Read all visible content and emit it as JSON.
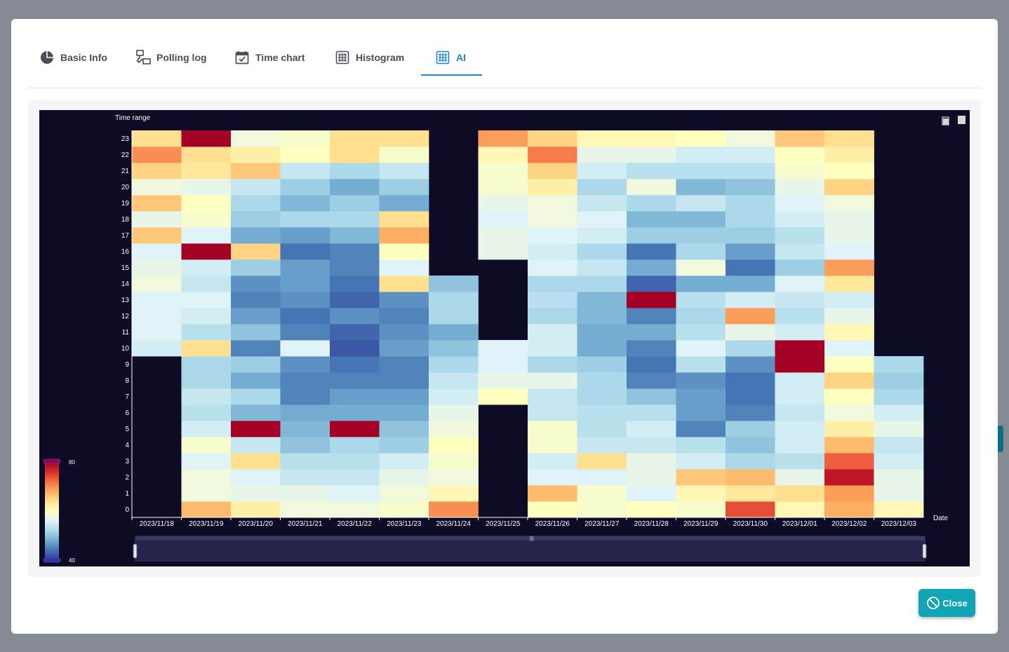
{
  "tabs": [
    {
      "label": "Basic Info",
      "icon": "pie-chart-icon",
      "active": false
    },
    {
      "label": "Polling log",
      "icon": "network-check-icon",
      "active": false
    },
    {
      "label": "Time chart",
      "icon": "calendar-check-icon",
      "active": false
    },
    {
      "label": "Histogram",
      "icon": "grid-icon",
      "active": false
    },
    {
      "label": "AI",
      "icon": "grid-icon",
      "active": true
    }
  ],
  "close_button": {
    "label": "Close",
    "icon": "ban-icon"
  },
  "colors": {
    "accent": "#1f86c9",
    "close": "#11a4b4",
    "chart_bg": "#0e0b26"
  },
  "chart_data": {
    "type": "heatmap",
    "ylabel": "Time range",
    "xlabel": "Date",
    "x": [
      "2023/11/18",
      "2023/11/19",
      "2023/11/20",
      "2023/11/21",
      "2023/11/22",
      "2023/11/23",
      "2023/11/24",
      "2023/11/25",
      "2023/11/26",
      "2023/11/27",
      "2023/11/28",
      "2023/11/29",
      "2023/11/30",
      "2023/12/01",
      "2023/12/02",
      "2023/12/03"
    ],
    "y": [
      "0",
      "1",
      "2",
      "3",
      "4",
      "5",
      "6",
      "7",
      "8",
      "9",
      "10",
      "11",
      "12",
      "13",
      "14",
      "15",
      "16",
      "17",
      "18",
      "19",
      "20",
      "21",
      "22",
      "23"
    ],
    "visual_map": {
      "min": 40,
      "max": 80,
      "min_label": "40",
      "max_label": "80"
    },
    "values": [
      [
        null,
        null,
        null,
        null,
        null,
        null,
        null,
        null,
        null,
        null,
        55,
        56,
        56,
        56,
        58,
        57,
        56,
        66,
        57,
        66,
        58,
        65,
        70,
        64
      ],
      [
        67,
        58,
        58,
        56,
        59,
        55,
        53,
        54,
        52,
        52,
        64,
        53,
        55,
        56,
        54,
        55,
        80,
        56,
        59,
        60,
        57,
        63,
        64,
        80
      ],
      [
        62,
        57,
        56,
        64,
        54,
        80,
        49,
        52,
        48,
        51,
        45,
        50,
        47,
        45,
        46,
        51,
        65,
        48,
        51,
        52,
        54,
        66,
        62,
        58
      ],
      [
        58,
        57,
        54,
        53,
        50,
        49,
        48,
        45,
        45,
        46,
        56,
        45,
        44,
        46,
        47,
        47,
        44,
        47,
        52,
        49,
        51,
        54,
        60,
        59
      ],
      [
        58,
        56,
        54,
        53,
        52,
        80,
        48,
        47,
        45,
        44,
        42,
        43,
        46,
        43,
        44,
        45,
        45,
        49,
        52,
        51,
        48,
        52,
        64,
        64
      ],
      [
        59,
        58,
        57,
        55,
        51,
        50,
        48,
        47,
        45,
        45,
        47,
        46,
        45,
        46,
        64,
        56,
        60,
        68,
        64,
        48,
        51,
        54,
        59,
        64
      ],
      [
        70,
        61,
        58,
        59,
        60,
        58,
        57,
        55,
        54,
        52,
        50,
        48,
        52,
        52,
        50,
        null,
        null,
        null,
        null,
        null,
        null,
        null,
        null,
        null
      ],
      [
        null,
        null,
        null,
        null,
        null,
        null,
        null,
        60,
        57,
        56,
        56,
        null,
        null,
        null,
        null,
        null,
        57,
        57,
        56,
        57,
        59,
        59,
        61,
        69
      ],
      [
        60,
        67,
        56,
        55,
        59,
        59,
        54,
        54,
        57,
        52,
        55,
        55,
        52,
        53,
        52,
        56,
        55,
        56,
        58,
        58,
        62,
        65,
        71,
        65
      ],
      [
        59,
        59,
        56,
        64,
        54,
        53,
        53,
        52,
        52,
        51,
        48,
        48,
        49,
        49,
        52,
        54,
        52,
        55,
        56,
        54,
        52,
        55,
        57,
        61
      ],
      [
        60,
        56,
        57,
        57,
        54,
        55,
        53,
        50,
        45,
        44,
        45,
        48,
        45,
        80,
        43,
        48,
        44,
        51,
        49,
        52,
        58,
        53,
        57,
        61
      ],
      [
        59,
        61,
        66,
        55,
        53,
        45,
        47,
        47,
        46,
        53,
        56,
        53,
        52,
        53,
        48,
        58,
        52,
        51,
        49,
        54,
        49,
        53,
        55,
        60
      ],
      [
        74,
        63,
        67,
        52,
        50,
        51,
        45,
        44,
        44,
        46,
        52,
        57,
        69,
        55,
        48,
        44,
        47,
        51,
        52,
        52,
        50,
        53,
        55,
        58
      ],
      [
        61,
        64,
        57,
        53,
        55,
        55,
        54,
        55,
        55,
        80,
        80,
        55,
        53,
        54,
        56,
        51,
        54,
        53,
        55,
        56,
        57,
        59,
        60,
        66
      ],
      [
        68,
        69,
        78,
        73,
        67,
        62,
        58,
        60,
        65,
        60,
        56,
        61,
        57,
        55,
        63,
        69,
        56,
        57,
        57,
        58,
        65,
        60,
        62,
        64
      ],
      [
        61,
        57,
        57,
        55,
        54,
        57,
        55,
        52,
        51,
        52,
        null,
        null,
        null,
        null,
        null,
        null,
        null,
        null,
        null,
        null,
        null,
        null,
        null,
        null
      ]
    ]
  }
}
